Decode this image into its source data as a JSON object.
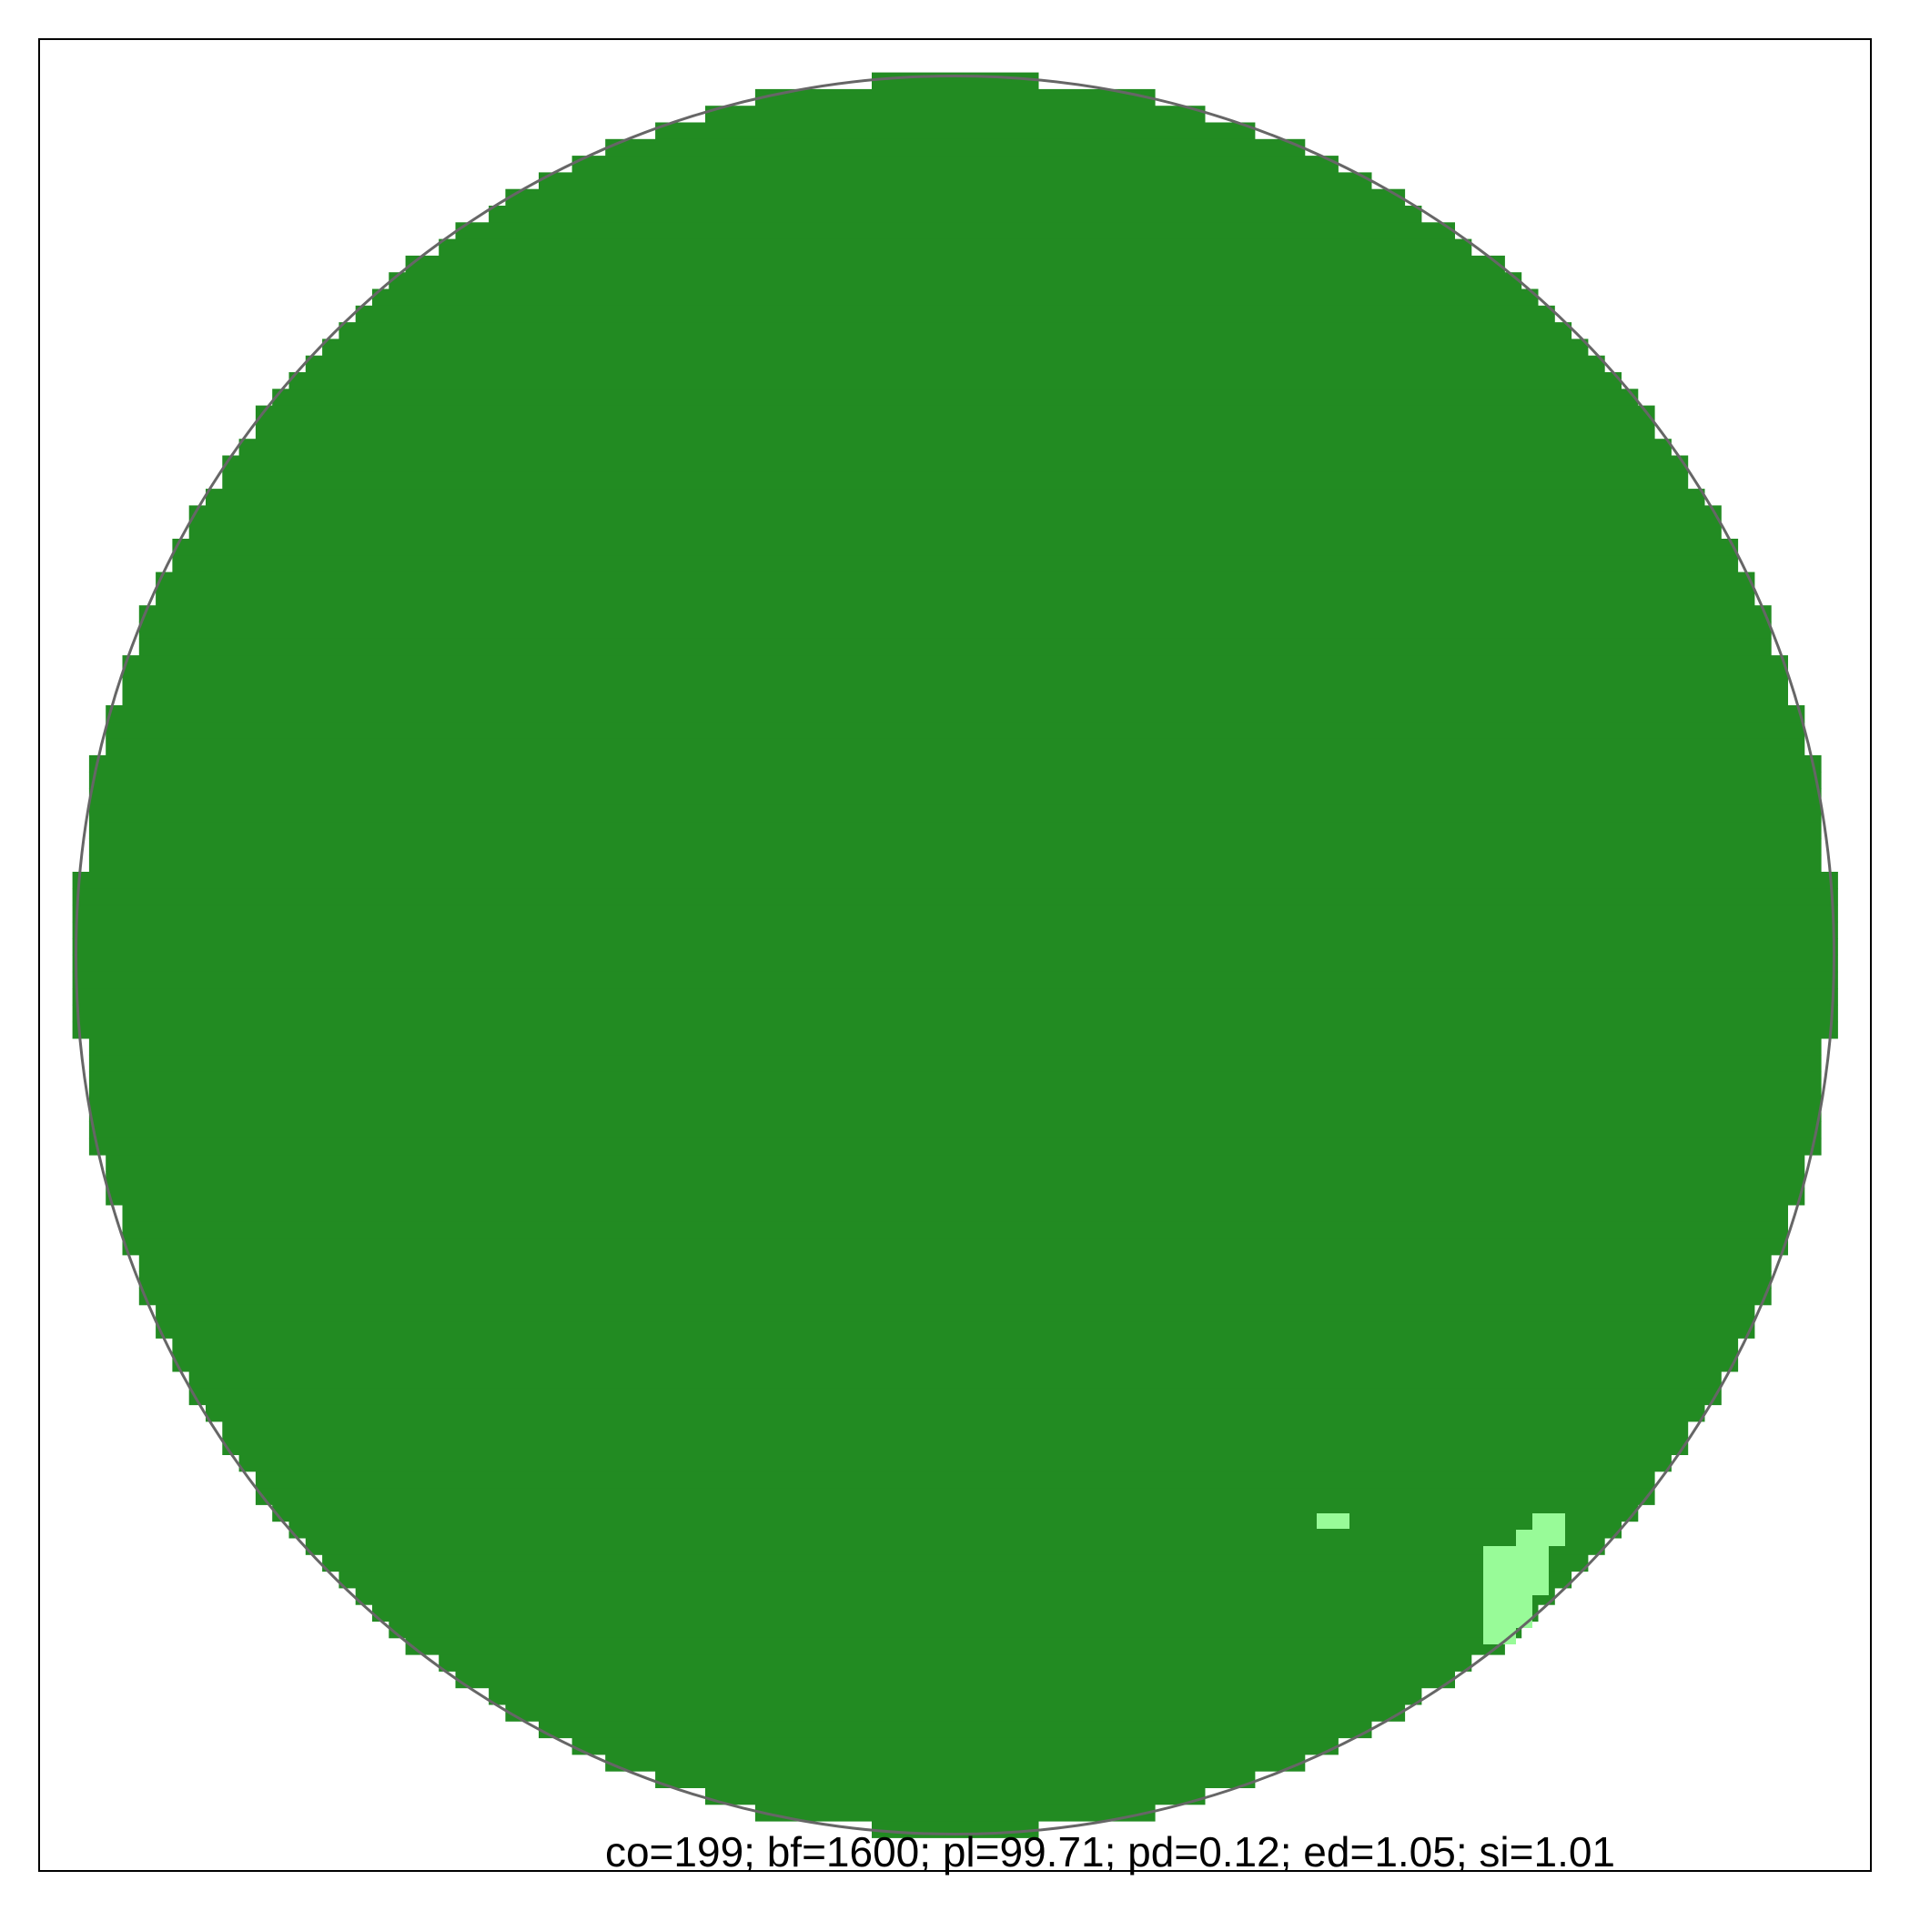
{
  "figure": {
    "caption": "co=199; bf=1600; pl=99.71; pd=0.12; ed=1.05; si=1.01",
    "colors": {
      "background": "#ffffff",
      "frame": "#000000",
      "outline": "#666666",
      "dominant_fill": "#228b22",
      "minor_fill": "#98fb98"
    }
  }
}
